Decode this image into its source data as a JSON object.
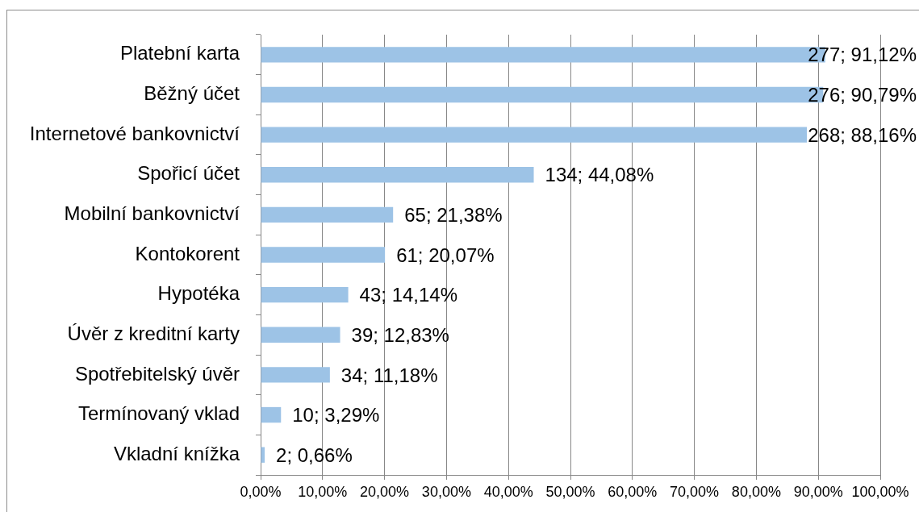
{
  "chart_data": {
    "type": "bar",
    "orientation": "horizontal",
    "categories": [
      "Platební karta",
      "Běžný účet",
      "Internetové bankovnictví",
      "Spořicí účet",
      "Mobilní bankovnictví",
      "Kontokorent",
      "Hypotéka",
      "Úvěr z kreditní karty",
      "Spotřebitelský úvěr",
      "Termínovaný vklad",
      "Vkladní knížka"
    ],
    "values": [
      91.12,
      90.79,
      88.16,
      44.08,
      21.38,
      20.07,
      14.14,
      12.83,
      11.18,
      3.29,
      0.66
    ],
    "value_labels": [
      "277; 91,12%",
      "276; 90,79%",
      "268; 88,16%",
      "134; 44,08%",
      "65; 21,38%",
      "61; 20,07%",
      "43; 14,14%",
      "39; 12,83%",
      "34; 11,18%",
      "10; 3,29%",
      "2; 0,66%"
    ],
    "color": "#9dc3e6",
    "xlim": [
      0,
      100
    ],
    "xticks": [
      {
        "value": 0,
        "label": "0,00%"
      },
      {
        "value": 10,
        "label": "10,00%"
      },
      {
        "value": 20,
        "label": "20,00%"
      },
      {
        "value": 30,
        "label": "30,00%"
      },
      {
        "value": 40,
        "label": "40,00%"
      },
      {
        "value": 50,
        "label": "50,00%"
      },
      {
        "value": 60,
        "label": "60,00%"
      },
      {
        "value": 70,
        "label": "70,00%"
      },
      {
        "value": 80,
        "label": "80,00%"
      },
      {
        "value": 90,
        "label": "90,00%"
      },
      {
        "value": 100,
        "label": "100,00%"
      }
    ],
    "grid": "x"
  }
}
